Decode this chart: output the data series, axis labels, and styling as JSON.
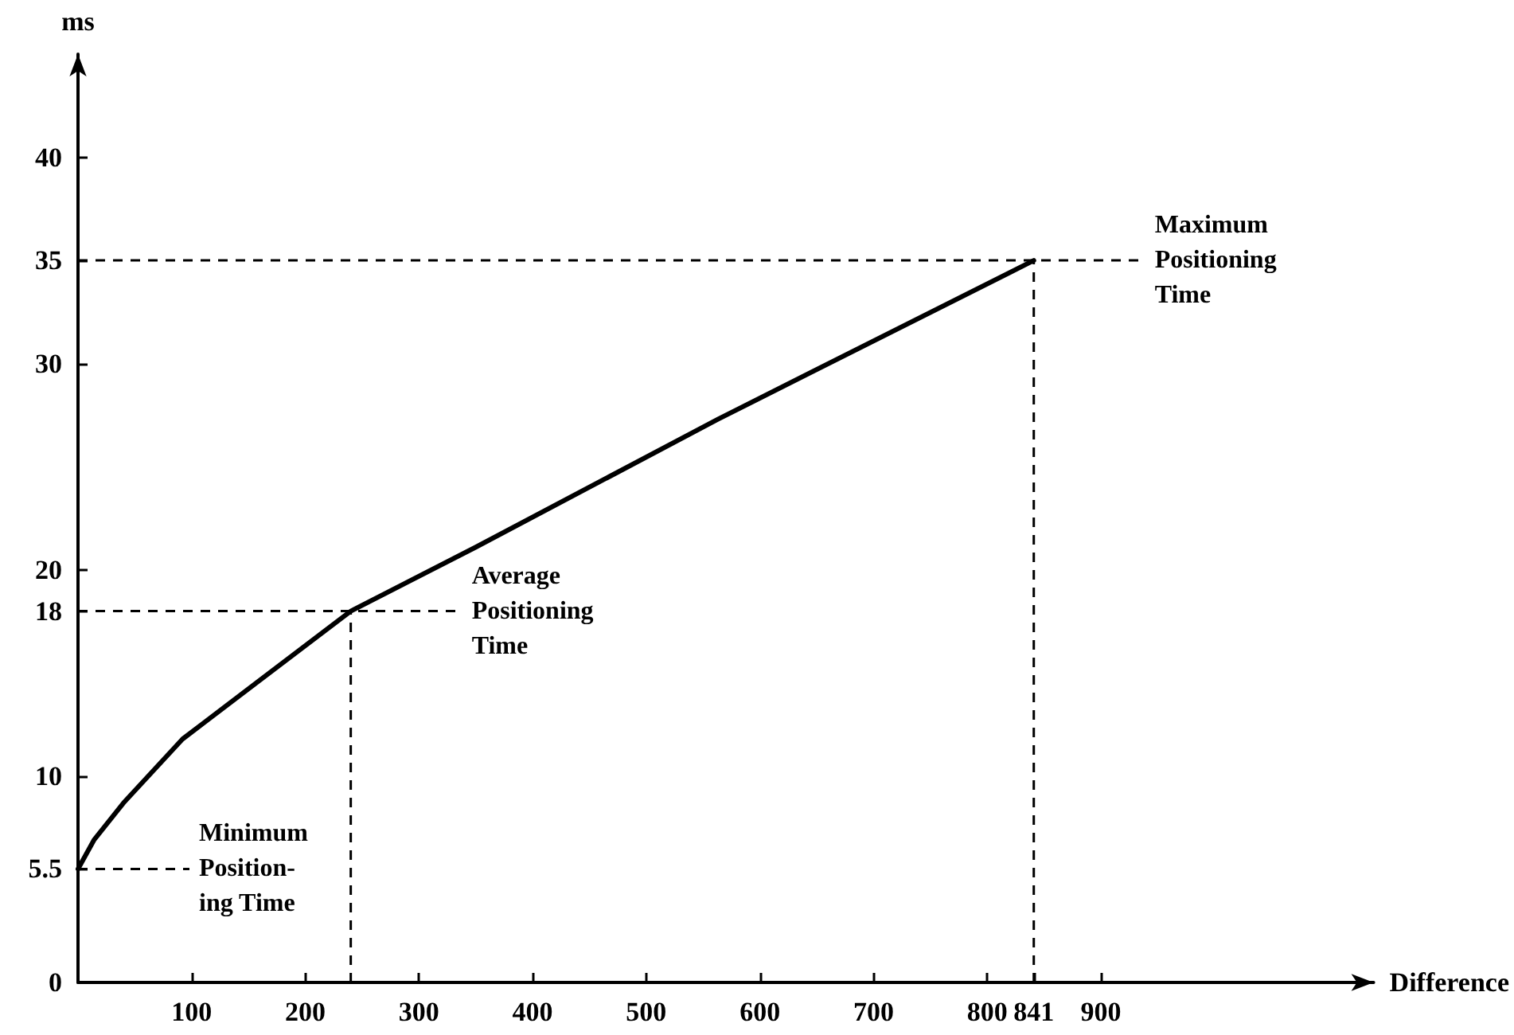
{
  "chart_data": {
    "type": "line",
    "xlabel": "Difference",
    "ylabel": "ms",
    "x": [
      0,
      14,
      40,
      92,
      154,
      240,
      350,
      563,
      841
    ],
    "series": [
      {
        "color": "#000000",
        "values": [
          5.5,
          6.9,
          8.7,
          11.8,
          14.4,
          18,
          21.1,
          27.3,
          35
        ]
      }
    ],
    "xlim": [
      0,
      1140
    ],
    "ylim": [
      0,
      45
    ],
    "xticks": [
      100,
      200,
      300,
      400,
      500,
      600,
      700,
      800,
      841,
      900
    ],
    "yticks": [
      0,
      5.5,
      10,
      18,
      20,
      30,
      35,
      40
    ],
    "ref_lines": [
      {
        "axis": "y",
        "value": 35,
        "label": "Maximum\nPositioning\nTime",
        "color": "#000000",
        "line_style": "dashed"
      },
      {
        "axis": "y",
        "value": 18,
        "label": "Average\nPositioning\nTime",
        "color": "#000000",
        "line_style": "dashed"
      },
      {
        "axis": "y",
        "value": 5.5,
        "label": "Minimum\nPosition-\ning Time",
        "color": "#000000",
        "line_style": "dashed"
      },
      {
        "axis": "x",
        "value": 240,
        "color": "#000000",
        "line_style": "dashed"
      },
      {
        "axis": "x",
        "value": 841,
        "color": "#000000",
        "line_style": "dashed"
      }
    ],
    "grid": false,
    "marker": "none",
    "line_style": "solid"
  }
}
